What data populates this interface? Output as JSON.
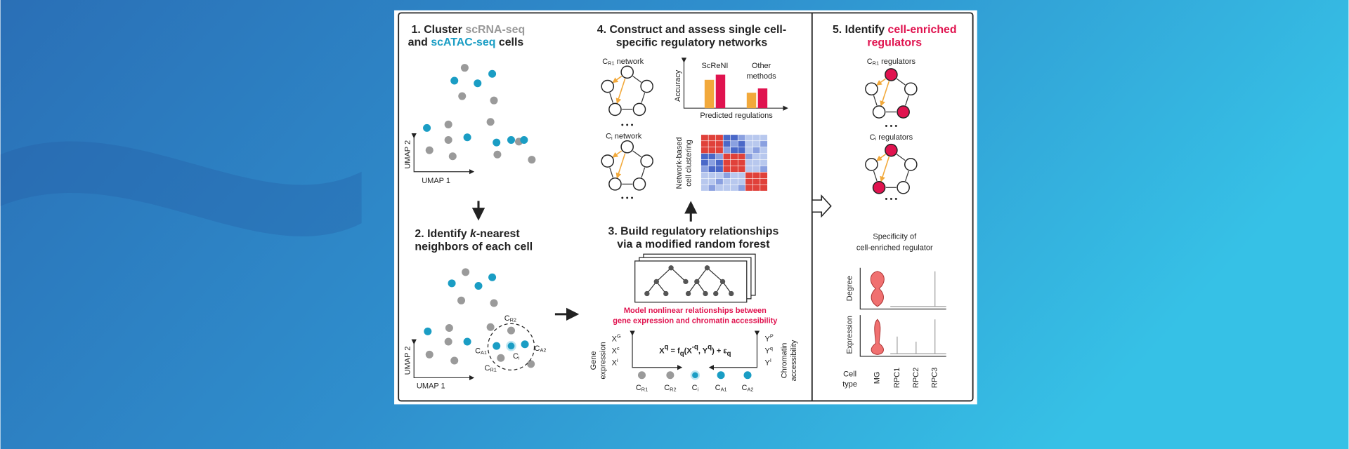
{
  "panel1": {
    "title": [
      "1. Cluster ",
      "scRNA-seq",
      "and ",
      "scATAC-seq",
      " cells"
    ],
    "y_axis": "UMAP 2",
    "x_axis": "UMAP 1"
  },
  "panel2": {
    "title": [
      "2. Identify ",
      "k",
      "-nearest",
      "neighbors of each cell"
    ],
    "labels": [
      {
        "main": "C",
        "sub": "R2"
      },
      {
        "main": "C",
        "sub": "A1"
      },
      {
        "main": "C",
        "sub": "i"
      },
      {
        "main": "C",
        "sub": "A2"
      },
      {
        "main": "C",
        "sub": "R1"
      }
    ],
    "y_axis": "UMAP 2",
    "x_axis": "UMAP 1"
  },
  "panel3": {
    "title": [
      "3. Build regulatory relationships",
      "via a modified random forest"
    ],
    "note": [
      "Model nonlinear relationships between",
      "gene expression and chromatin accessibility"
    ],
    "equation": [
      "X",
      "q",
      " = f",
      "q",
      "(X",
      "-q",
      ", Y",
      "q",
      ") + ε",
      "q"
    ],
    "left_axis": [
      "Gene",
      "expression"
    ],
    "right_axis": [
      "Chromatin",
      "accessibility"
    ],
    "x_terms": [
      {
        "main": "X",
        "sup": "G"
      },
      {
        "main": "X",
        "sup": "c"
      },
      {
        "main": "X",
        "sup": "i"
      }
    ],
    "y_terms": [
      {
        "main": "Y",
        "sup": "P"
      },
      {
        "main": "Y",
        "sup": "q"
      },
      {
        "main": "Y",
        "sup": "I"
      }
    ],
    "cells": [
      {
        "main": "C",
        "sub": "R1"
      },
      {
        "main": "C",
        "sub": "R2"
      },
      {
        "main": "C",
        "sub": "i"
      },
      {
        "main": "C",
        "sub": "A1"
      },
      {
        "main": "C",
        "sub": "A2"
      }
    ]
  },
  "panel4": {
    "title": [
      "4. Construct and assess single cell-",
      "specific regulatory networks"
    ],
    "network1": {
      "main": "C",
      "sub": "R1",
      "rest": " network"
    },
    "network2": {
      "main": "C",
      "sub": "i",
      "rest": " network"
    },
    "ellipsis": "• • •",
    "y_axis": "Accuracy",
    "method1": "ScReNI",
    "method2": [
      "Other",
      "methods"
    ],
    "x_axis": "Predicted regulations",
    "heatmap_label": [
      "Network-based",
      "cell clustering"
    ]
  },
  "panel5": {
    "title": [
      "5. Identify ",
      "cell-enriched",
      "regulators"
    ],
    "network1": {
      "main": "C",
      "sub": "R1",
      "rest": " regulators"
    },
    "network2": {
      "main": "C",
      "sub": "i",
      "rest": " regulators"
    },
    "ellipsis": "• • •",
    "specificity": [
      "Specificity of",
      "cell-enriched regulator"
    ],
    "rows": [
      "Degree",
      "Expression"
    ],
    "cell_type": [
      "Cell",
      "type"
    ],
    "types": [
      "MG",
      "RPC1",
      "RPC2",
      "RPC3"
    ]
  }
}
